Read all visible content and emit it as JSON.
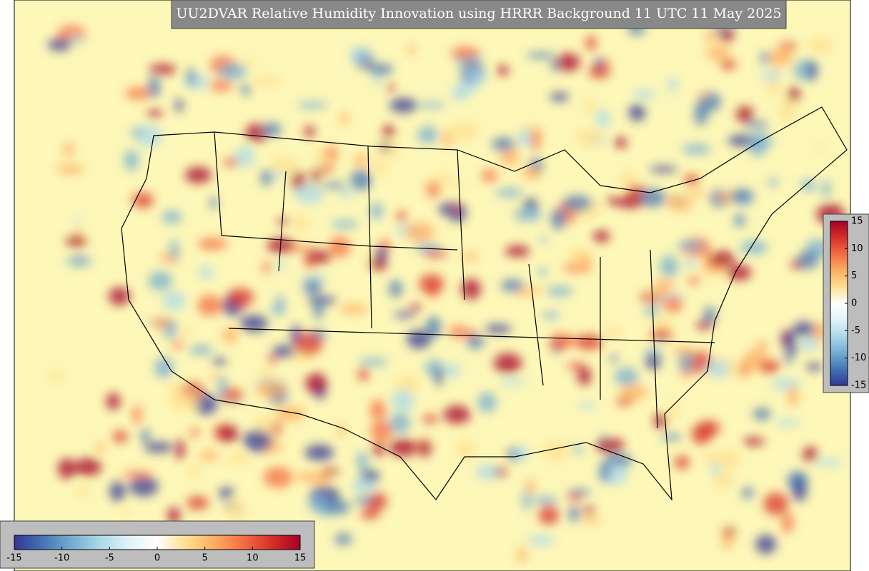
{
  "title": "UU2DVAR Relative Humidity Innovation using HRRR Background 11 UTC 11 May 2025",
  "colormap": [
    "#313695",
    "#4575b4",
    "#74add1",
    "#abd9e9",
    "#e0f3f8",
    "#ffffff",
    "#fee090",
    "#fdae61",
    "#f46d43",
    "#d73027",
    "#a50026"
  ],
  "colorbar_horizontal": {
    "lim": [
      -15,
      15
    ],
    "ticks": [
      -15,
      -10,
      -5,
      0,
      5,
      10,
      15
    ]
  },
  "colorbar_vertical": {
    "lim": [
      -15,
      15
    ],
    "ticks": [
      15,
      10,
      5,
      0,
      -5,
      -10,
      -15
    ]
  }
}
